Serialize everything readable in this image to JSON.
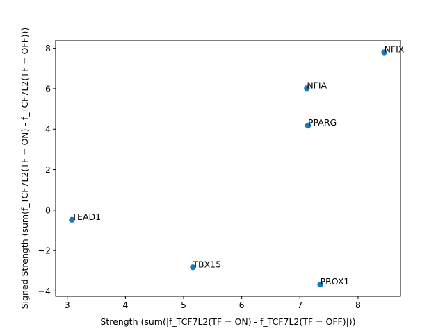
{
  "chart_data": {
    "type": "scatter",
    "xlabel": "Strength (sum(|f_TCF7L2(TF = ON) - f_TCF7L2(TF = OFF)|))",
    "ylabel": "Signed Strength (sum(f_TCF7L2(TF = ON) - f_TCF7L2(TF = OFF)))",
    "xlim": [
      2.8,
      8.73
    ],
    "ylim": [
      -4.26,
      8.4
    ],
    "xticks": [
      3,
      4,
      5,
      6,
      7,
      8
    ],
    "yticks": [
      -4,
      -2,
      0,
      2,
      4,
      6,
      8
    ],
    "grid": false,
    "marker_color": "#1f77b4",
    "points": [
      {
        "label": "NFIX",
        "x": 8.45,
        "y": 7.8
      },
      {
        "label": "NFIA",
        "x": 7.12,
        "y": 6.02
      },
      {
        "label": "PPARG",
        "x": 7.14,
        "y": 4.18
      },
      {
        "label": "TEAD1",
        "x": 3.08,
        "y": -0.48
      },
      {
        "label": "TBX15",
        "x": 5.16,
        "y": -2.83
      },
      {
        "label": "PROX1",
        "x": 7.35,
        "y": -3.68
      }
    ]
  }
}
